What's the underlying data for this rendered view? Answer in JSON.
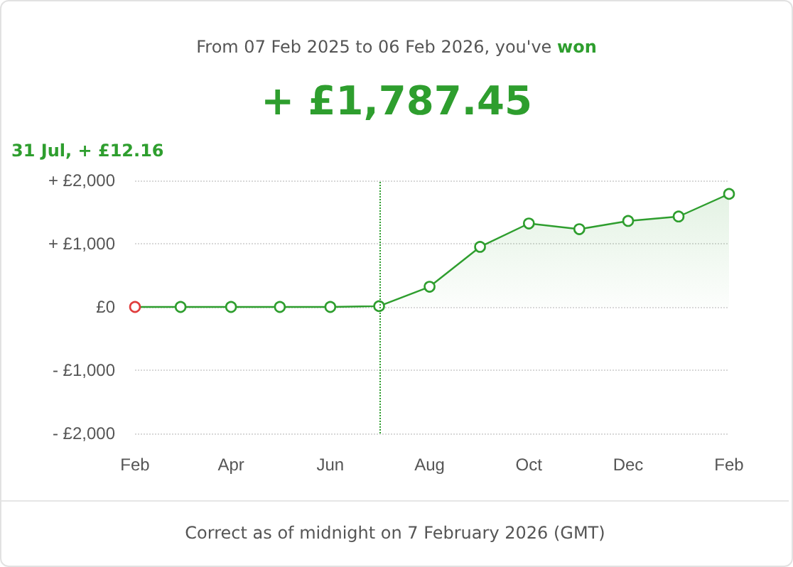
{
  "chart_data": {
    "type": "area",
    "title": "From 07 Feb 2025 to 06 Feb 2026, you've won",
    "subtitle": "+ £1,787.45",
    "x": [
      "2025-02",
      "2025-03",
      "2025-04",
      "2025-05",
      "2025-06",
      "2025-07",
      "2025-08",
      "2025-09",
      "2025-10",
      "2025-11",
      "2025-12",
      "2026-01",
      "2026-02"
    ],
    "xlim": [
      "2025-02",
      "2026-02"
    ],
    "xticks": [
      {
        "value": "2025-02",
        "label": "Feb"
      },
      {
        "value": "2025-04",
        "label": "Apr"
      },
      {
        "value": "2025-06",
        "label": "Jun"
      },
      {
        "value": "2025-08",
        "label": "Aug"
      },
      {
        "value": "2025-10",
        "label": "Oct"
      },
      {
        "value": "2025-12",
        "label": "Dec"
      },
      {
        "value": "2026-02",
        "label": "Feb"
      }
    ],
    "ref_lines": [
      {
        "axis": "x",
        "value": "2025-07",
        "color": "#2e9e2e",
        "line_style": "dotted"
      }
    ],
    "series": [
      {
        "color": "#2e9e2e",
        "colors": [
          "#e03c3c",
          "#2e9e2e",
          "#2e9e2e",
          "#2e9e2e",
          "#2e9e2e",
          "#2e9e2e",
          "#2e9e2e",
          "#2e9e2e",
          "#2e9e2e",
          "#2e9e2e",
          "#2e9e2e",
          "#2e9e2e",
          "#2e9e2e"
        ],
        "values": [
          0,
          0,
          0,
          0,
          0,
          12.16,
          320,
          950,
          1320,
          1230,
          1360,
          1430,
          1787.45
        ]
      }
    ],
    "ylim": [
      -2000,
      2000
    ],
    "yticks": [
      {
        "value": -2000,
        "label": "- £2,000"
      },
      {
        "value": -1000,
        "label": "- £1,000"
      },
      {
        "value": 0,
        "label": "£0"
      },
      {
        "value": 1000,
        "label": "+ £1,000"
      },
      {
        "value": 2000,
        "label": "+ £2,000"
      }
    ],
    "annotations": [
      "31 Jul, + £12.16",
      "Correct as of midnight on 7 February 2026 (GMT)"
    ],
    "grid": "y",
    "marker": "circle",
    "line_style": "solid"
  }
}
